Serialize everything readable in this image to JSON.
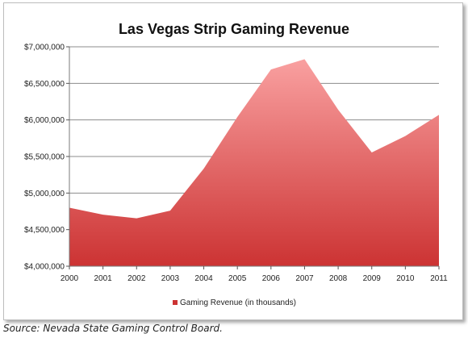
{
  "chart_data": {
    "type": "area",
    "title": "Las Vegas Strip Gaming Revenue",
    "categories": [
      "2000",
      "2001",
      "2002",
      "2003",
      "2004",
      "2005",
      "2006",
      "2007",
      "2008",
      "2009",
      "2010",
      "2011"
    ],
    "series": [
      {
        "name": "Gaming Revenue (in thousands)",
        "values": [
          4800000,
          4705000,
          4655000,
          4760000,
          5335000,
          6040000,
          6690000,
          6830000,
          6140000,
          5555000,
          5780000,
          6070000
        ]
      }
    ],
    "y_ticks": [
      "$4,000,000",
      "$4,500,000",
      "$5,000,000",
      "$5,500,000",
      "$6,000,000",
      "$6,500,000",
      "$7,000,000"
    ],
    "ylim": [
      4000000,
      7000000
    ],
    "xlabel": "",
    "ylabel": "",
    "grid": true,
    "legend_position": "bottom",
    "colors": {
      "area_top": "#f9a0a0",
      "area_bottom": "#cc3333",
      "gridline": "#8c8c8c"
    }
  },
  "source": "Source: Nevada State Gaming Control Board."
}
